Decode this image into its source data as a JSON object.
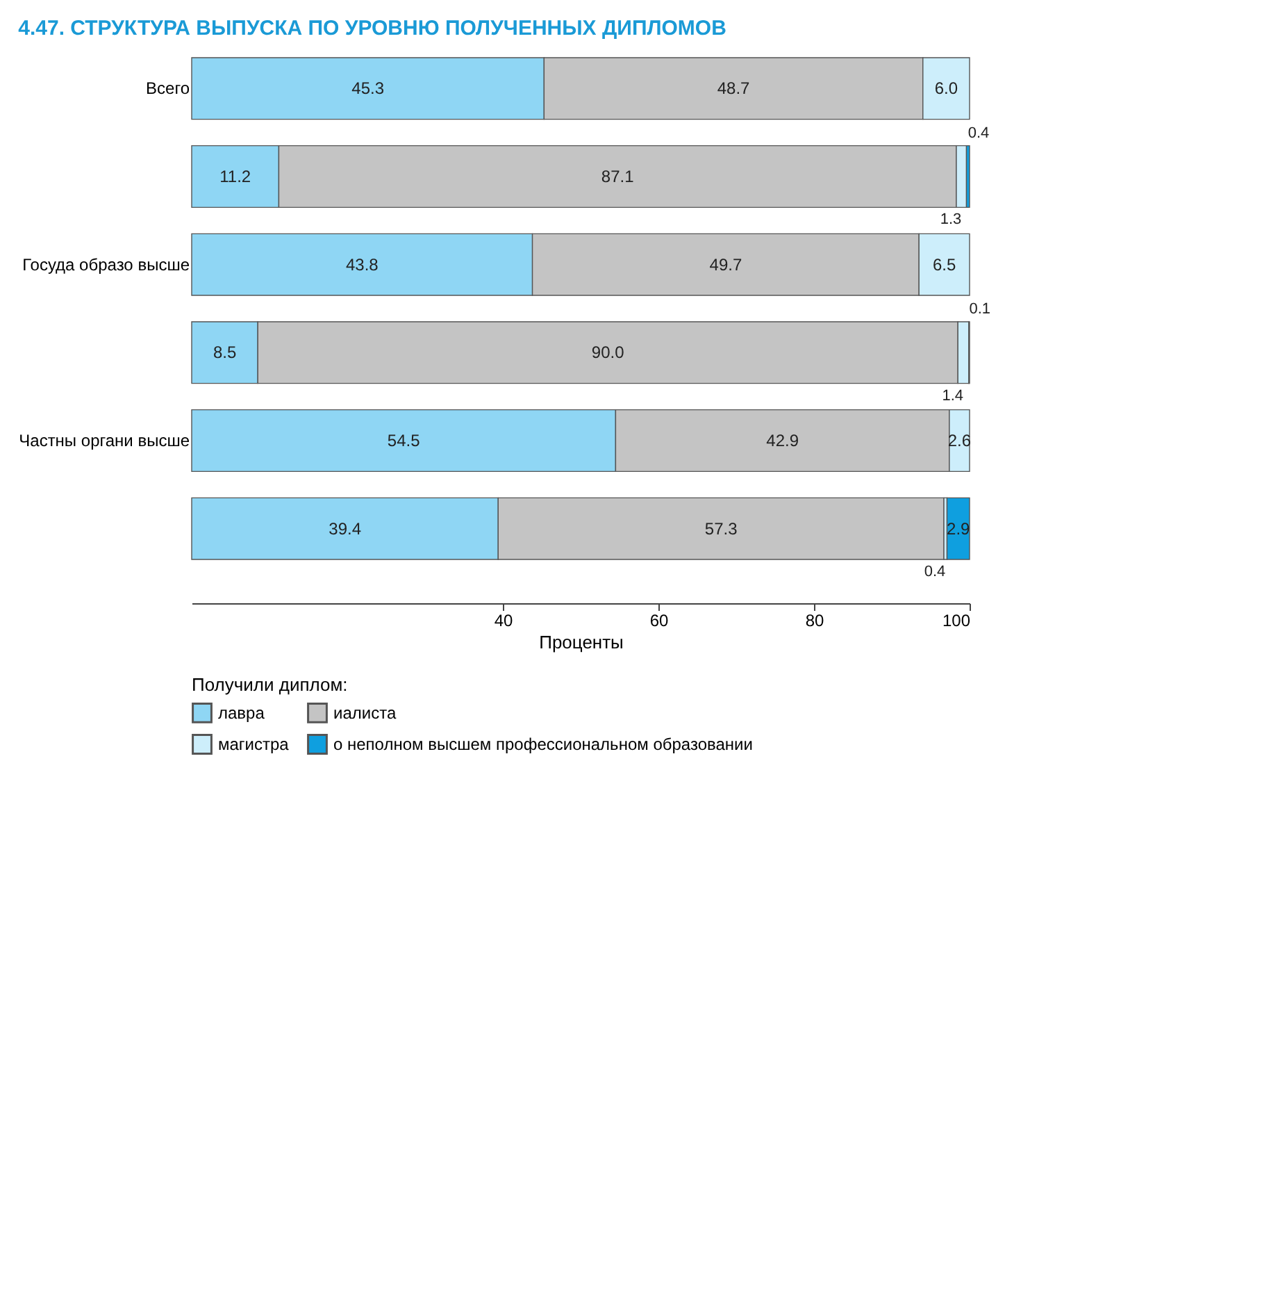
{
  "chart_data": {
    "type": "bar",
    "orientation": "horizontal",
    "stacked": true,
    "title": "4.47. СТРУКТУРА ВЫПУСКА ПО УРОВНЮ ПОЛУЧЕННЫХ ДИПЛОМОВ",
    "xlabel": "Проценты",
    "legend_title": "Получили диплом:",
    "legend": "bottom",
    "categories": [
      "Всего",
      null,
      "Госуда образо высше",
      null,
      "Частны органи высше",
      null
    ],
    "xlim": [
      0,
      100
    ],
    "xticks": [
      40,
      60,
      80,
      100
    ],
    "series": [
      {
        "name": "лавра",
        "color": "#8fd6f4",
        "values": [
          45.3,
          11.2,
          43.8,
          8.5,
          54.5,
          39.4
        ],
        "value_labels": [
          "45.3",
          "11.2",
          "43.8",
          "8.5",
          "54.5",
          "39.4"
        ]
      },
      {
        "name": "иалиста",
        "color": "#c4c4c4",
        "values": [
          48.7,
          87.1,
          49.7,
          90.0,
          42.9,
          57.3
        ],
        "value_labels": [
          "48.7",
          "87.1",
          "49.7",
          "90.0",
          "42.9",
          "57.3"
        ]
      },
      {
        "name": "магистра",
        "color": "#cdeefb",
        "values": [
          6.0,
          1.3,
          6.5,
          1.4,
          2.6,
          0.4
        ],
        "value_labels": [
          "6.0",
          "1.3",
          "6.5",
          "1.4",
          "2.6",
          "0.4"
        ]
      },
      {
        "name": "о неполном высшем профессиональном образовании",
        "color": "#0f9fdf",
        "values": [
          null,
          0.4,
          null,
          0.1,
          null,
          2.9
        ],
        "value_labels": [
          null,
          "0.4",
          null,
          "0.1",
          null,
          "2.9"
        ]
      }
    ]
  }
}
